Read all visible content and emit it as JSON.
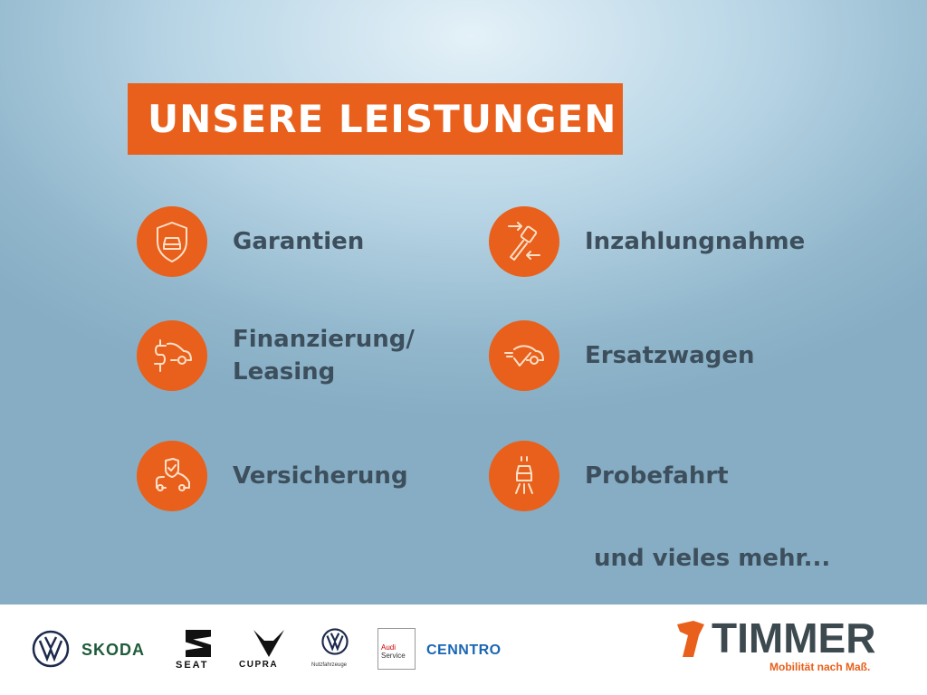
{
  "banner": {
    "title": "UNSERE LEISTUNGEN"
  },
  "colors": {
    "accent": "#e8601c",
    "text": "#3d4f5c"
  },
  "services": [
    {
      "label": "Garantien",
      "icon": "shield-car-icon"
    },
    {
      "label": "Inzahlungnahme",
      "icon": "key-exchange-icon"
    },
    {
      "label": "Finanzierung/",
      "label2": "Leasing",
      "icon": "dollar-car-icon"
    },
    {
      "label": "Ersatzwagen",
      "icon": "car-check-icon"
    },
    {
      "label": "Versicherung",
      "icon": "shield-check-car-icon"
    },
    {
      "label": "Probefahrt",
      "icon": "car-headlights-icon"
    }
  ],
  "more": "und vieles mehr...",
  "brands": {
    "skoda": "SKODA",
    "seat": "SEAT",
    "cupra": "CUPRA",
    "vwn": "Nutzfahrzeuge",
    "audi1": "Audi",
    "audi2": "Service",
    "cenntro": "CENNTRO"
  },
  "dealer": {
    "name": "TIMMER",
    "slogan": "Mobilität nach Maß."
  }
}
